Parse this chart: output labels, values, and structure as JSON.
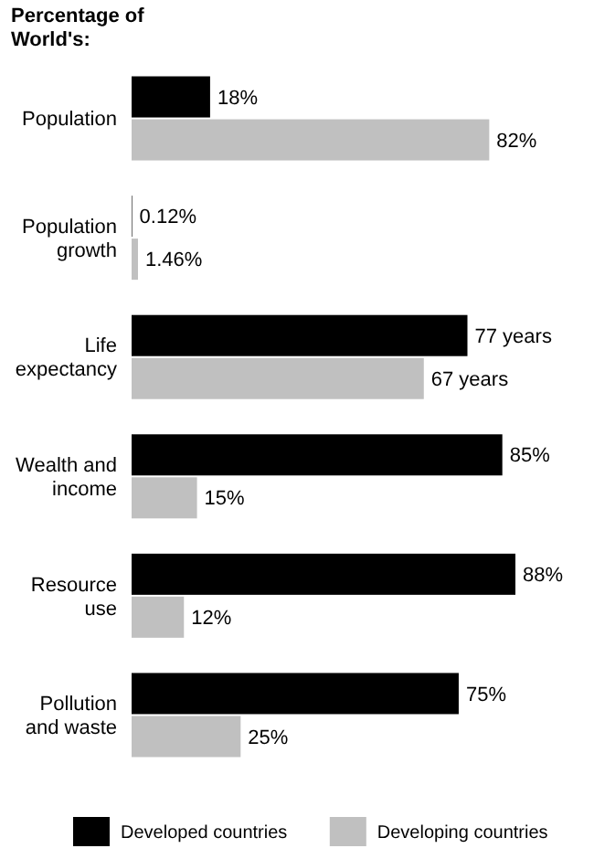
{
  "chart_data": {
    "type": "bar",
    "orientation": "horizontal",
    "title": "Percentage of World's:",
    "categories": [
      "Population",
      "Population growth",
      "Life expectancy",
      "Wealth and income",
      "Resource use",
      "Pollution and waste"
    ],
    "series": [
      {
        "name": "Developed countries",
        "color": "#000000",
        "values": [
          18,
          0.12,
          77,
          85,
          88,
          75
        ],
        "value_labels": [
          "18%",
          "0.12%",
          "77 years",
          "85%",
          "88%",
          "75%"
        ]
      },
      {
        "name": "Developing countries",
        "color": "#c0c0c0",
        "values": [
          82,
          1.46,
          67,
          15,
          12,
          25
        ],
        "value_labels": [
          "82%",
          "1.46%",
          "67 years",
          "15%",
          "12%",
          "25%"
        ]
      }
    ],
    "legend": "bottom"
  }
}
